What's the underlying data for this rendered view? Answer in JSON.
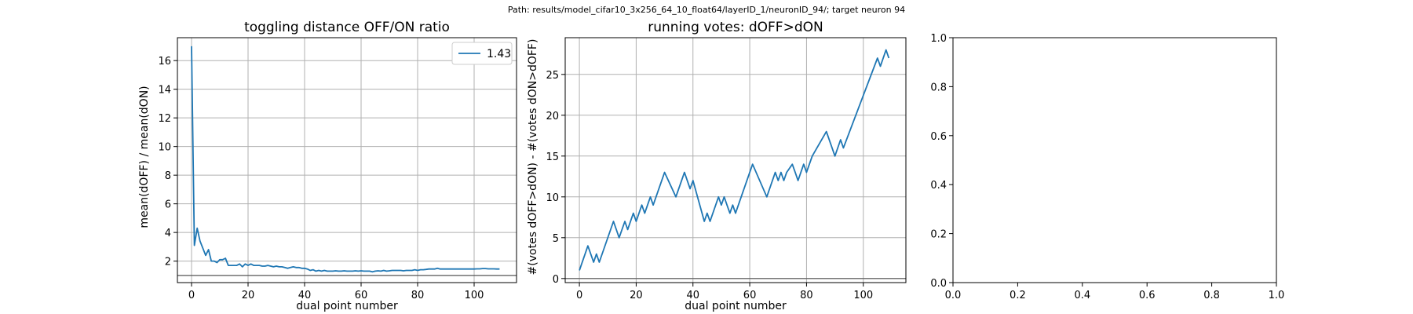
{
  "suptitle": "Path: results/model_cifar10_3x256_64_10_float64/layerID_1/neuronID_94/; target neuron 94",
  "chart_data": [
    {
      "type": "line",
      "title": "toggling distance OFF/ON ratio",
      "xlabel": "dual point number",
      "ylabel": "mean(dOFF) / mean(dON)",
      "xlim": [
        -5,
        115
      ],
      "ylim": [
        0.5,
        17.6
      ],
      "xticks": [
        0,
        20,
        40,
        60,
        80,
        100
      ],
      "yticks": [
        2,
        4,
        6,
        8,
        10,
        12,
        14,
        16
      ],
      "xtick_labels": [
        "0",
        "20",
        "40",
        "60",
        "80",
        "100"
      ],
      "ytick_labels": [
        "2",
        "4",
        "6",
        "8",
        "10",
        "12",
        "14",
        "16"
      ],
      "grid": true,
      "legend": "top-right",
      "hline": 1.0,
      "colors": {
        "series": "#1f77b4",
        "hline": "#555555",
        "grid": "#b0b0b0"
      },
      "series": [
        {
          "name": "1.43",
          "x": [
            0,
            1,
            2,
            3,
            4,
            5,
            6,
            7,
            8,
            9,
            10,
            11,
            12,
            13,
            14,
            15,
            16,
            17,
            18,
            19,
            20,
            21,
            22,
            23,
            24,
            25,
            26,
            27,
            28,
            29,
            30,
            31,
            32,
            33,
            34,
            35,
            36,
            37,
            38,
            39,
            40,
            41,
            42,
            43,
            44,
            45,
            46,
            47,
            48,
            49,
            50,
            51,
            52,
            53,
            54,
            55,
            56,
            57,
            58,
            59,
            60,
            61,
            62,
            63,
            64,
            65,
            66,
            67,
            68,
            69,
            70,
            71,
            72,
            73,
            74,
            75,
            76,
            77,
            78,
            79,
            80,
            81,
            82,
            83,
            84,
            85,
            86,
            87,
            88,
            89,
            90,
            91,
            92,
            93,
            94,
            95,
            96,
            97,
            98,
            99,
            100,
            101,
            102,
            103,
            104,
            105,
            106,
            107,
            108,
            109
          ],
          "y": [
            17.0,
            3.1,
            4.3,
            3.4,
            2.9,
            2.4,
            2.8,
            2.0,
            2.0,
            1.9,
            2.1,
            2.1,
            2.2,
            1.7,
            1.7,
            1.7,
            1.7,
            1.8,
            1.6,
            1.8,
            1.7,
            1.8,
            1.7,
            1.7,
            1.7,
            1.65,
            1.65,
            1.7,
            1.65,
            1.6,
            1.65,
            1.6,
            1.6,
            1.55,
            1.5,
            1.55,
            1.6,
            1.55,
            1.55,
            1.5,
            1.5,
            1.45,
            1.35,
            1.4,
            1.3,
            1.35,
            1.3,
            1.35,
            1.3,
            1.3,
            1.3,
            1.32,
            1.3,
            1.3,
            1.32,
            1.3,
            1.3,
            1.3,
            1.32,
            1.3,
            1.32,
            1.3,
            1.3,
            1.3,
            1.25,
            1.3,
            1.32,
            1.3,
            1.35,
            1.3,
            1.32,
            1.35,
            1.35,
            1.35,
            1.35,
            1.32,
            1.35,
            1.35,
            1.35,
            1.4,
            1.35,
            1.4,
            1.4,
            1.42,
            1.45,
            1.45,
            1.45,
            1.5,
            1.45,
            1.45,
            1.45,
            1.45,
            1.45,
            1.45,
            1.45,
            1.45,
            1.45,
            1.45,
            1.45,
            1.45,
            1.45,
            1.46,
            1.46,
            1.48,
            1.48,
            1.46,
            1.46,
            1.46,
            1.45,
            1.45
          ]
        }
      ]
    },
    {
      "type": "line",
      "title": "running votes: dOFF>dON",
      "xlabel": "dual point number",
      "ylabel": "#(votes dOFF>dON) - #(votes dON>dOFF)",
      "xlim": [
        -5,
        115
      ],
      "ylim": [
        -0.5,
        29.5
      ],
      "xticks": [
        0,
        20,
        40,
        60,
        80,
        100
      ],
      "yticks": [
        0,
        5,
        10,
        15,
        20,
        25
      ],
      "xtick_labels": [
        "0",
        "20",
        "40",
        "60",
        "80",
        "100"
      ],
      "ytick_labels": [
        "0",
        "5",
        "10",
        "15",
        "20",
        "25"
      ],
      "grid": true,
      "hline": 0,
      "colors": {
        "series": "#1f77b4",
        "hline": "#555555",
        "grid": "#b0b0b0"
      },
      "series": [
        {
          "x": [
            0,
            3,
            5,
            6,
            7,
            12,
            14,
            16,
            17,
            18,
            19,
            20,
            21,
            22,
            23,
            24,
            25,
            26,
            30,
            34,
            37,
            39,
            40,
            44,
            45,
            46,
            49,
            50,
            51,
            52,
            53,
            54,
            55,
            57,
            61,
            66,
            69,
            70,
            71,
            72,
            73,
            75,
            76,
            77,
            78,
            79,
            80,
            82,
            87,
            90,
            92,
            93,
            105,
            106,
            108,
            109
          ],
          "y": [
            1,
            4,
            2,
            3,
            2,
            7,
            5,
            7,
            6,
            7,
            8,
            7,
            8,
            9,
            8,
            9,
            10,
            9,
            13,
            10,
            13,
            11,
            12,
            7,
            8,
            7,
            10,
            9,
            10,
            9,
            8,
            9,
            8,
            10,
            14,
            10,
            13,
            12,
            13,
            12,
            13,
            14,
            13,
            12,
            13,
            14,
            13,
            15,
            18,
            15,
            17,
            16,
            27,
            26,
            28,
            27
          ]
        }
      ]
    },
    {
      "type": "line",
      "title": "",
      "xlabel": "",
      "ylabel": "",
      "xlim": [
        0,
        1
      ],
      "ylim": [
        0,
        1
      ],
      "xticks": [
        0,
        0.2,
        0.4,
        0.6,
        0.8,
        1.0
      ],
      "yticks": [
        0,
        0.2,
        0.4,
        0.6,
        0.8,
        1.0
      ],
      "xtick_labels": [
        "0.0",
        "0.2",
        "0.4",
        "0.6",
        "0.8",
        "1.0"
      ],
      "ytick_labels": [
        "0.0",
        "0.2",
        "0.4",
        "0.6",
        "0.8",
        "1.0"
      ],
      "grid": false,
      "series": []
    }
  ]
}
